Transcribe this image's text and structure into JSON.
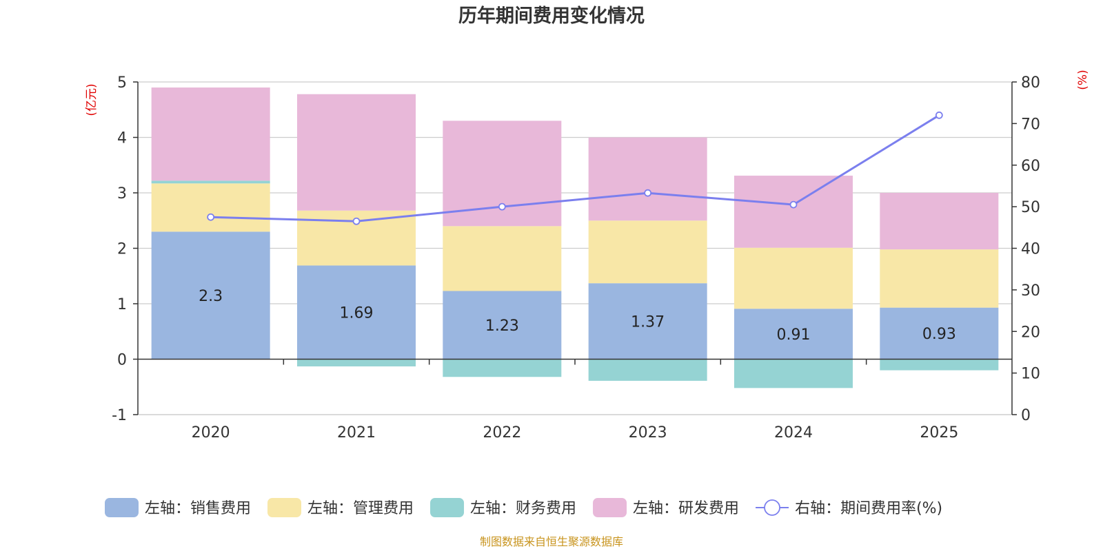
{
  "chart_data": {
    "type": "bar",
    "title": "历年期间费用变化情况",
    "categories": [
      "2020",
      "2021",
      "2022",
      "2023",
      "2024",
      "2025"
    ],
    "left_axis": {
      "unit": "(亿元)",
      "ylim": [
        -1,
        5
      ],
      "ticks": [
        -1,
        0,
        1,
        2,
        3,
        4,
        5
      ]
    },
    "right_axis": {
      "unit": "(%)",
      "ylim": [
        0,
        80
      ],
      "ticks": [
        0,
        10,
        20,
        30,
        40,
        50,
        60,
        70,
        80
      ]
    },
    "series": [
      {
        "name": "左轴：销售费用",
        "axis": "left",
        "kind": "bar",
        "color": "#9ab6e0",
        "show_labels": true,
        "values": [
          2.3,
          1.69,
          1.23,
          1.37,
          0.91,
          0.93
        ],
        "labels": [
          "2.3",
          "1.69",
          "1.23",
          "1.37",
          "0.91",
          "0.93"
        ]
      },
      {
        "name": "左轴：管理费用",
        "axis": "left",
        "kind": "bar",
        "color": "#f8e7a7",
        "values": [
          0.87,
          0.99,
          1.17,
          1.13,
          1.1,
          1.05
        ]
      },
      {
        "name": "左轴：财务费用",
        "axis": "left",
        "kind": "bar",
        "color": "#95d3d3",
        "values": [
          0.05,
          -0.13,
          -0.32,
          -0.39,
          -0.52,
          -0.2
        ]
      },
      {
        "name": "左轴：研发费用",
        "axis": "left",
        "kind": "bar",
        "color": "#e8b8d9",
        "values": [
          1.68,
          2.1,
          1.9,
          1.5,
          1.3,
          1.02
        ]
      },
      {
        "name": "右轴：期间费用率(%)",
        "axis": "right",
        "kind": "line",
        "color": "#7b7fee",
        "values": [
          47.5,
          46.5,
          50.0,
          53.3,
          50.5,
          72.0
        ]
      }
    ],
    "legend_position": "bottom",
    "grid": true
  },
  "source_note": "制图数据来自恒生聚源数据库"
}
